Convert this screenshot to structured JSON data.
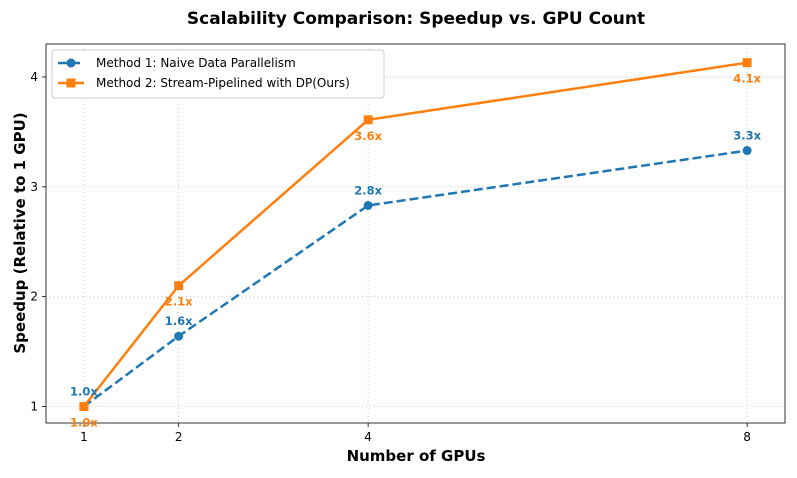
{
  "chart_data": {
    "type": "line",
    "title": "Scalability Comparison: Speedup vs. GPU Count",
    "xlabel": "Number of GPUs",
    "ylabel": "Speedup (Relative to 1 GPU)",
    "x": [
      1,
      2,
      4,
      8
    ],
    "xlim": [
      0.6,
      8.4
    ],
    "ylim": [
      0.85,
      4.3
    ],
    "yticks": [
      1,
      2,
      3,
      4
    ],
    "grid": true,
    "legend_position": "top-left",
    "series": [
      {
        "name": "Method 1: Naive Data Parallelism",
        "values": [
          1.0,
          1.64,
          2.83,
          3.33
        ],
        "labels": [
          "1.0x",
          "1.6x",
          "2.8x",
          "3.3x"
        ],
        "color": "#1f77b4",
        "marker": "circle",
        "linestyle": "dashed",
        "label_position": "above"
      },
      {
        "name": "Method 2: Stream-Pipelined with DP(Ours)",
        "values": [
          1.0,
          2.1,
          3.61,
          4.13
        ],
        "labels": [
          "1.0x",
          "2.1x",
          "3.6x",
          "4.1x"
        ],
        "color": "#ff7f0e",
        "marker": "square",
        "linestyle": "solid",
        "label_position": "below"
      }
    ]
  }
}
